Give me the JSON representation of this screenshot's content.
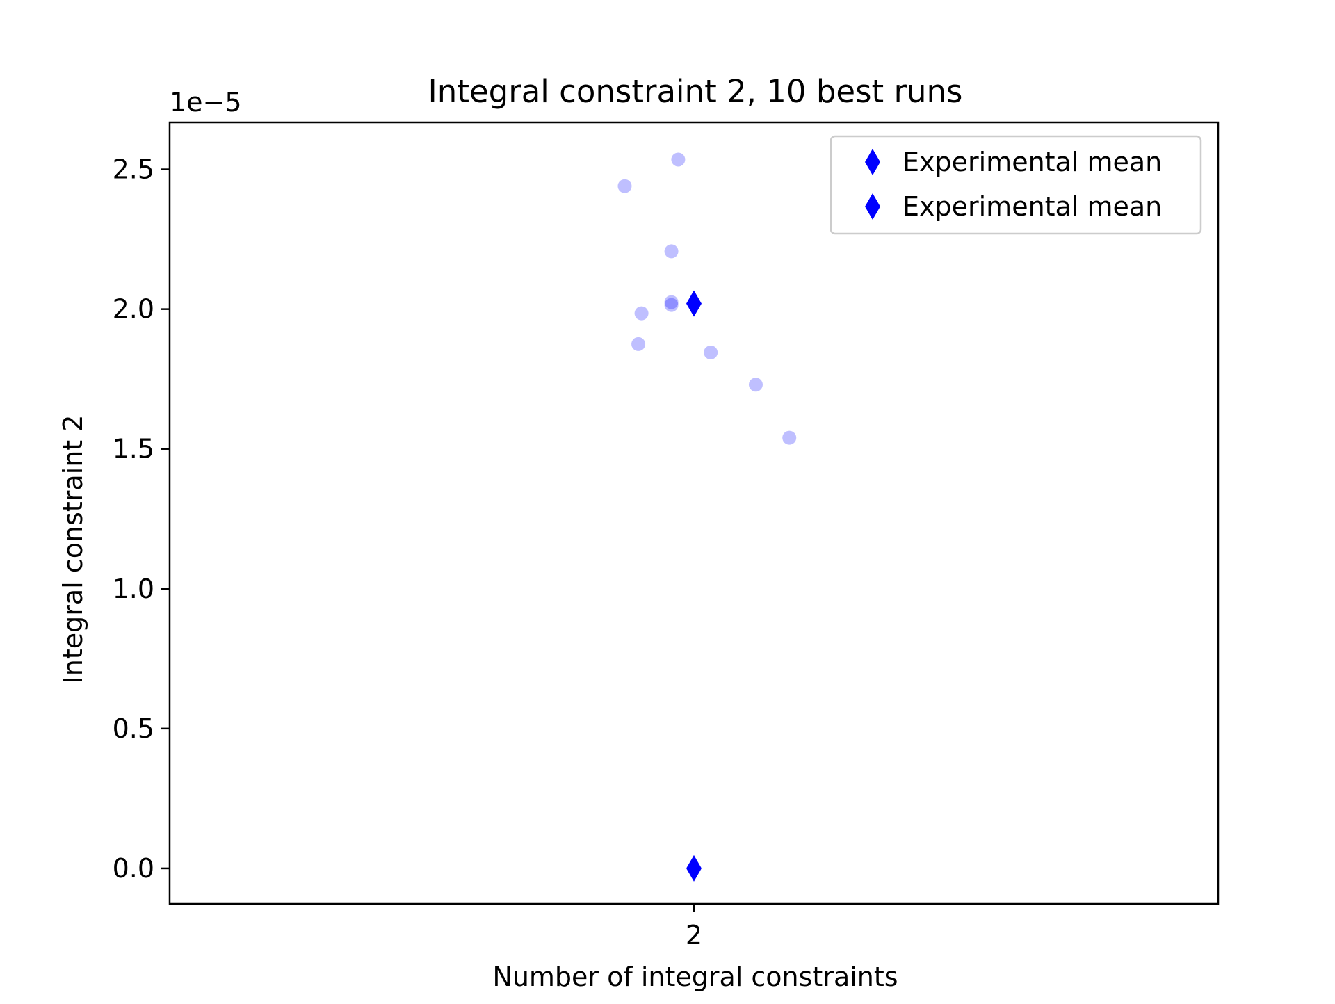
{
  "chart_data": {
    "type": "scatter",
    "title": "Integral constraint 2, 10 best runs",
    "xlabel": "Number of integral constraints",
    "ylabel": "Integral constraint 2",
    "offset_label": "1e−5",
    "y_scale_factor": 1e-05,
    "xlim": [
      1.0,
      3.0
    ],
    "ylim": [
      -0.127,
      2.668
    ],
    "x_ticks": [
      2
    ],
    "x_tick_labels": [
      "2"
    ],
    "y_ticks": [
      0.0,
      0.5,
      1.0,
      1.5,
      2.0,
      2.5
    ],
    "y_tick_labels": [
      "0.0",
      "0.5",
      "1.0",
      "1.5",
      "2.0",
      "2.5"
    ],
    "grid": false,
    "legend_position": "top-right",
    "legend": [
      "Experimental mean",
      "Experimental mean"
    ],
    "series": [
      {
        "marker": "circle",
        "color": "#0000ff",
        "opacity": 0.25,
        "points": [
          [
            1.97,
            2.535
          ],
          [
            1.868,
            2.44
          ],
          [
            1.957,
            2.207
          ],
          [
            1.957,
            2.025
          ],
          [
            1.957,
            2.015
          ],
          [
            1.9,
            1.985
          ],
          [
            1.894,
            1.875
          ],
          [
            2.032,
            1.845
          ],
          [
            2.118,
            1.73
          ],
          [
            2.182,
            1.54
          ]
        ]
      },
      {
        "name": "Experimental mean",
        "marker": "diamond",
        "color": "#0000ff",
        "points": [
          [
            2.0,
            2.02
          ]
        ]
      },
      {
        "name": "Experimental mean",
        "marker": "diamond",
        "color": "#0000ff",
        "points": [
          [
            2.0,
            0.0
          ]
        ]
      }
    ]
  }
}
